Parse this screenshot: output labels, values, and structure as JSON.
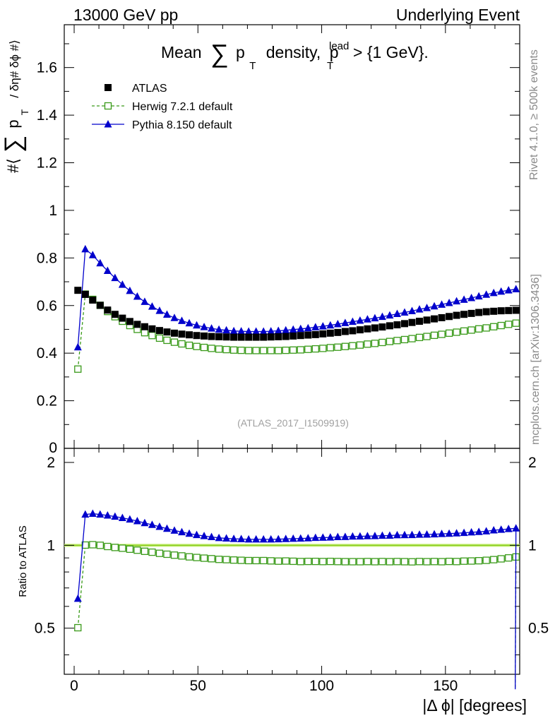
{
  "header": {
    "left": "13000 GeV pp",
    "right": "Underlying Event"
  },
  "side": {
    "rivet": "Rivet 4.1.0, ≥ 500k events",
    "mcplots": "mcplots.cern.ch [arXiv:1306.3436]"
  },
  "chart_data": {
    "type": "scatter",
    "title": "Mean ∑ pT density, pT^lead > {1 GeV}.",
    "title_parts": {
      "a": "Mean",
      "sum": "∑",
      "p": "p",
      "T": "T",
      "b": "density,",
      "p2": "p",
      "T2": "T",
      "lead": "lead",
      "c": "> {1 GeV}."
    },
    "watermark": "(ATLAS_2017_I1509919)",
    "ylabel_parts": {
      "a": "#⟨",
      "sum": "∑",
      "p": "p",
      "T": "T",
      "b": "/ δη# δϕ #⟩"
    },
    "ratio_ylabel": "Ratio to ATLAS",
    "xlabel": "|Δ ϕ| [degrees]",
    "xlim": [
      -4,
      180
    ],
    "ylim": [
      0,
      1.78
    ],
    "ratio_ylim": [
      0.34,
      2.25
    ],
    "x_ticks": [
      "0",
      "50",
      "100",
      "150"
    ],
    "y_ticks": [
      "0.2",
      "0.4",
      "0.6",
      "0.8",
      "1",
      "1.2",
      "1.4",
      "1.6"
    ],
    "y_zero_label": "0",
    "ratio_ticks": [
      "0.5",
      "1",
      "2"
    ],
    "legend": [
      {
        "key": "atlas",
        "label": "ATLAS"
      },
      {
        "key": "herwig",
        "label": "Herwig 7.2.1 default"
      },
      {
        "key": "pythia",
        "label": "Pythia 8.150 default"
      }
    ],
    "colors": {
      "atlas": "#000000",
      "herwig": "#3a9a1a",
      "pythia": "#0000cc",
      "band": "#c8f07a",
      "bandEdge": "#88cc20"
    },
    "x": [
      1.5,
      4.5,
      7.5,
      10.5,
      13.5,
      16.5,
      19.5,
      22.5,
      25.5,
      28.5,
      31.5,
      34.5,
      37.5,
      40.5,
      43.5,
      46.5,
      49.5,
      52.5,
      55.5,
      58.5,
      61.5,
      64.5,
      67.5,
      70.5,
      73.5,
      76.5,
      79.5,
      82.5,
      85.5,
      88.5,
      91.5,
      94.5,
      97.5,
      100.5,
      103.5,
      106.5,
      109.5,
      112.5,
      115.5,
      118.5,
      121.5,
      124.5,
      127.5,
      130.5,
      133.5,
      136.5,
      139.5,
      142.5,
      145.5,
      148.5,
      151.5,
      154.5,
      157.5,
      160.5,
      163.5,
      166.5,
      169.5,
      172.5,
      175.5,
      178.5
    ],
    "series": [
      {
        "name": "ATLAS",
        "key": "atlas",
        "values": [
          0.664,
          0.647,
          0.623,
          0.601,
          0.581,
          0.563,
          0.547,
          0.533,
          0.521,
          0.511,
          0.502,
          0.495,
          0.489,
          0.484,
          0.48,
          0.477,
          0.474,
          0.472,
          0.47,
          0.469,
          0.468,
          0.467,
          0.467,
          0.467,
          0.467,
          0.467,
          0.468,
          0.469,
          0.47,
          0.472,
          0.474,
          0.476,
          0.478,
          0.481,
          0.484,
          0.487,
          0.491,
          0.494,
          0.498,
          0.502,
          0.506,
          0.51,
          0.515,
          0.519,
          0.524,
          0.529,
          0.534,
          0.539,
          0.544,
          0.549,
          0.554,
          0.559,
          0.563,
          0.567,
          0.571,
          0.574,
          0.576,
          0.578,
          0.579,
          0.58
        ]
      },
      {
        "name": "Herwig 7.2.1 default",
        "key": "herwig",
        "values": [
          0.333,
          0.648,
          0.626,
          0.601,
          0.575,
          0.553,
          0.534,
          0.516,
          0.5,
          0.486,
          0.474,
          0.463,
          0.454,
          0.446,
          0.439,
          0.433,
          0.428,
          0.424,
          0.42,
          0.417,
          0.415,
          0.413,
          0.412,
          0.411,
          0.411,
          0.411,
          0.411,
          0.411,
          0.412,
          0.413,
          0.414,
          0.416,
          0.418,
          0.42,
          0.423,
          0.425,
          0.428,
          0.431,
          0.434,
          0.438,
          0.441,
          0.445,
          0.449,
          0.453,
          0.457,
          0.461,
          0.466,
          0.47,
          0.475,
          0.479,
          0.484,
          0.488,
          0.493,
          0.497,
          0.502,
          0.506,
          0.511,
          0.516,
          0.521,
          0.526
        ]
      },
      {
        "name": "Pythia 8.150 default",
        "key": "pythia",
        "values": [
          0.425,
          0.837,
          0.812,
          0.778,
          0.746,
          0.716,
          0.688,
          0.662,
          0.638,
          0.616,
          0.596,
          0.578,
          0.562,
          0.548,
          0.536,
          0.526,
          0.517,
          0.51,
          0.504,
          0.499,
          0.496,
          0.493,
          0.492,
          0.491,
          0.491,
          0.491,
          0.492,
          0.494,
          0.496,
          0.499,
          0.502,
          0.505,
          0.509,
          0.513,
          0.517,
          0.522,
          0.527,
          0.532,
          0.537,
          0.542,
          0.547,
          0.553,
          0.559,
          0.565,
          0.571,
          0.577,
          0.584,
          0.59,
          0.597,
          0.604,
          0.611,
          0.618,
          0.625,
          0.632,
          0.639,
          0.646,
          0.653,
          0.659,
          0.664,
          0.669
        ]
      }
    ],
    "ratio_series": [
      {
        "key": "herwig",
        "values": [
          0.502,
          1.002,
          1.005,
          1.0,
          0.99,
          0.982,
          0.976,
          0.968,
          0.96,
          0.951,
          0.944,
          0.935,
          0.928,
          0.921,
          0.915,
          0.908,
          0.903,
          0.898,
          0.894,
          0.889,
          0.887,
          0.884,
          0.882,
          0.88,
          0.88,
          0.88,
          0.878,
          0.876,
          0.877,
          0.875,
          0.873,
          0.874,
          0.874,
          0.873,
          0.874,
          0.873,
          0.872,
          0.872,
          0.872,
          0.873,
          0.872,
          0.873,
          0.872,
          0.873,
          0.872,
          0.871,
          0.873,
          0.872,
          0.873,
          0.872,
          0.874,
          0.873,
          0.876,
          0.877,
          0.879,
          0.882,
          0.887,
          0.893,
          0.9,
          0.907
        ]
      },
      {
        "key": "pythia",
        "values": [
          0.64,
          1.294,
          1.303,
          1.294,
          1.284,
          1.272,
          1.258,
          1.242,
          1.225,
          1.205,
          1.187,
          1.168,
          1.149,
          1.132,
          1.117,
          1.103,
          1.091,
          1.081,
          1.072,
          1.064,
          1.06,
          1.056,
          1.054,
          1.051,
          1.051,
          1.051,
          1.051,
          1.053,
          1.055,
          1.057,
          1.059,
          1.061,
          1.065,
          1.067,
          1.068,
          1.072,
          1.073,
          1.077,
          1.078,
          1.08,
          1.081,
          1.084,
          1.085,
          1.089,
          1.09,
          1.091,
          1.094,
          1.095,
          1.097,
          1.1,
          1.103,
          1.106,
          1.11,
          1.115,
          1.119,
          1.125,
          1.134,
          1.14,
          1.147,
          1.153
        ]
      }
    ],
    "ratio_last_drop": 0.3
  }
}
